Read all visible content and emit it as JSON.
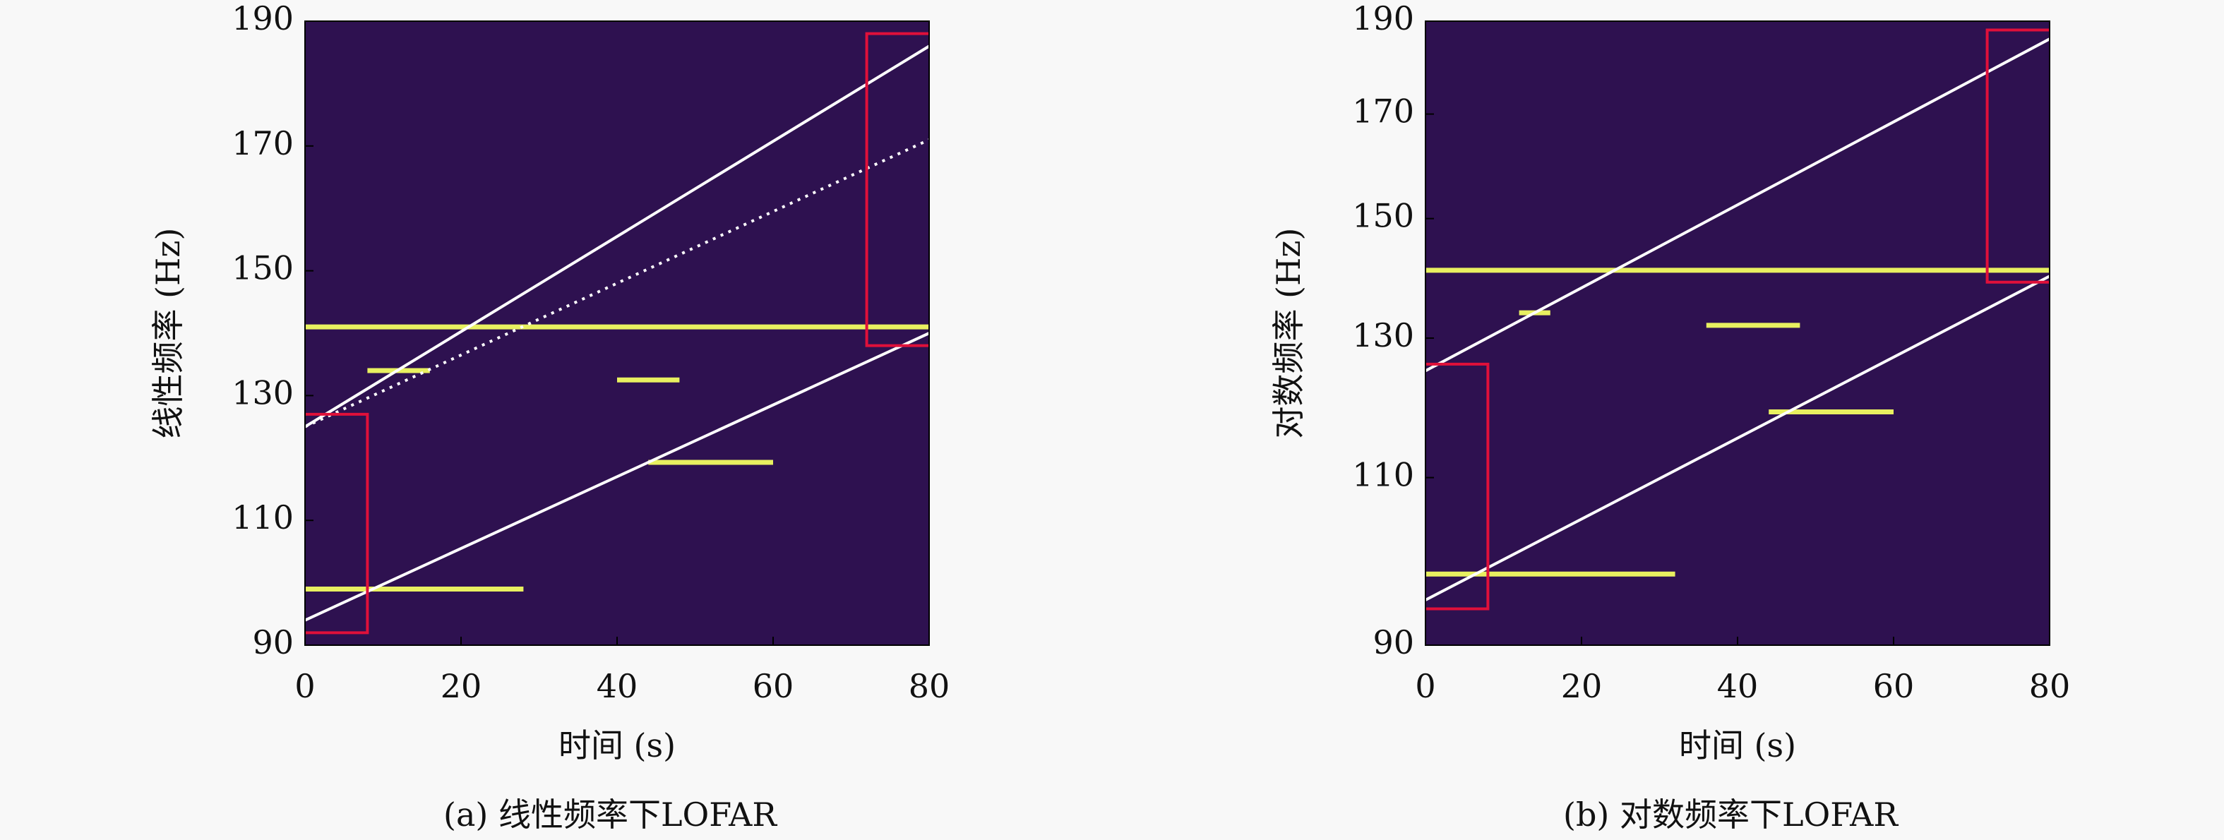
{
  "chart_data": [
    {
      "type": "heatmap",
      "title": "(a) 线性频率下LOFAR",
      "xlabel": "时间 (s)",
      "ylabel": "线性频率 (Hz)",
      "xlim": [
        0,
        80
      ],
      "xticks": [
        0,
        20,
        40,
        60,
        80
      ],
      "ylim": [
        90,
        190
      ],
      "yticks": [
        90,
        110,
        130,
        150,
        170,
        190
      ],
      "log_y": false,
      "background": "#2e1150",
      "series": [
        {
          "color": "#e8f060",
          "dash": false,
          "x": [
            0,
            80
          ],
          "y": [
            141,
            141
          ]
        },
        {
          "color": "#e8f060",
          "dash": false,
          "x": [
            0,
            28
          ],
          "y": [
            99,
            99
          ]
        },
        {
          "color": "#e8f060",
          "dash": false,
          "x": [
            40,
            48
          ],
          "y": [
            132.5,
            132.5
          ]
        },
        {
          "color": "#e8f060",
          "dash": false,
          "x": [
            44,
            60
          ],
          "y": [
            119.3,
            119.3
          ]
        },
        {
          "color": "#e8f060",
          "dash": false,
          "x": [
            8,
            16
          ],
          "y": [
            134,
            134
          ]
        },
        {
          "color": "#ffffff",
          "dash": false,
          "x": [
            0,
            80
          ],
          "y": [
            125,
            186
          ]
        },
        {
          "color": "#ffffff",
          "dash": true,
          "x": [
            0,
            80
          ],
          "y": [
            125,
            171
          ]
        },
        {
          "color": "#ffffff",
          "dash": false,
          "x": [
            0,
            80
          ],
          "y": [
            94,
            140
          ]
        },
        {
          "color": "#e0103a",
          "dash": false,
          "x": [
            0,
            8,
            8,
            0
          ],
          "y": [
            92,
            92,
            127,
            127
          ]
        },
        {
          "color": "#e0103a",
          "dash": false,
          "x": [
            80,
            72,
            72,
            80
          ],
          "y": [
            188,
            188,
            138,
            138
          ]
        }
      ]
    },
    {
      "type": "heatmap",
      "title": "(b) 对数频率下LOFAR",
      "xlabel": "时间 (s)",
      "ylabel": "对数频率 (Hz)",
      "xlim": [
        0,
        80
      ],
      "xticks": [
        0,
        20,
        40,
        60,
        80
      ],
      "ylim": [
        90,
        190
      ],
      "yticks": [
        90,
        110,
        130,
        150,
        170,
        190
      ],
      "log_y": true,
      "background": "#2e1150",
      "series": [
        {
          "color": "#e8f060",
          "dash": false,
          "x": [
            0,
            80
          ],
          "y": [
            141,
            141
          ]
        },
        {
          "color": "#e8f060",
          "dash": false,
          "x": [
            0,
            32
          ],
          "y": [
            98,
            98
          ]
        },
        {
          "color": "#e8f060",
          "dash": false,
          "x": [
            36,
            48
          ],
          "y": [
            132,
            132
          ]
        },
        {
          "color": "#e8f060",
          "dash": false,
          "x": [
            44,
            60
          ],
          "y": [
            119,
            119
          ]
        },
        {
          "color": "#e8f060",
          "dash": false,
          "x": [
            12,
            16
          ],
          "y": [
            134,
            134
          ]
        },
        {
          "color": "#ffffff",
          "dash": false,
          "x": [
            0,
            80
          ],
          "y": [
            125,
            186
          ]
        },
        {
          "color": "#ffffff",
          "dash": false,
          "x": [
            0,
            80
          ],
          "y": [
            95,
            140
          ]
        },
        {
          "color": "#e0103a",
          "dash": false,
          "x": [
            0,
            8,
            8,
            0
          ],
          "y": [
            94,
            94,
            126,
            126
          ]
        },
        {
          "color": "#e0103a",
          "dash": false,
          "x": [
            80,
            72,
            72,
            80
          ],
          "y": [
            188,
            188,
            139,
            139
          ]
        }
      ]
    }
  ]
}
